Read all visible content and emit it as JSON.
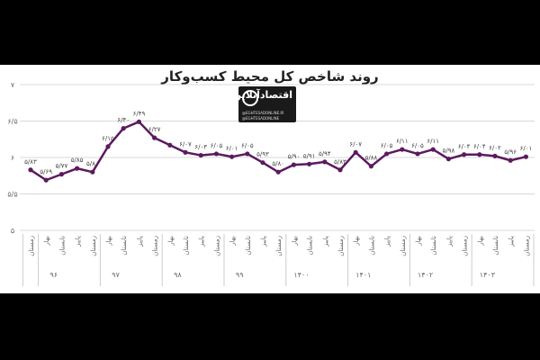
{
  "chart_data": {
    "type": "line",
    "title": "روند شاخص کل محیط کسب‌وکار",
    "ylim": [
      5,
      7
    ],
    "y_ticks": [
      "۵",
      "۵/۵",
      "۶",
      "۶/۵",
      "۷"
    ],
    "y_tick_values": [
      5,
      5.5,
      6,
      6.5,
      7
    ],
    "grid": true,
    "legend": "none",
    "line_color": "#5b1a5e",
    "x_labels": [
      "زمستان",
      "بهار",
      "تابستان",
      "پاییز",
      "زمستان",
      "بهار",
      "تابستان",
      "پاییز",
      "زمستان",
      "بهار",
      "تابستان",
      "پاییز",
      "زمستان",
      "بهار",
      "تابستان",
      "پاییز",
      "زمستان",
      "بهار",
      "تابستان",
      "پاییز",
      "زمستان",
      "بهار",
      "تابستان",
      "پاییز",
      "زمستان",
      "بهار",
      "تابستان",
      "پاییز",
      "زمستان",
      "بهار",
      "تابستان",
      "پاییز",
      "زمستان"
    ],
    "years": [
      "۹۶",
      "۹۷",
      "۹۸",
      "۹۹",
      "۱۴۰۰",
      "۱۴۰۱",
      "۱۴۰۲",
      "۱۴۰۳"
    ],
    "year_spans": [
      [
        0,
        0
      ],
      [
        1,
        4
      ],
      [
        5,
        8
      ],
      [
        9,
        12
      ],
      [
        13,
        16
      ],
      [
        17,
        20
      ],
      [
        21,
        24
      ],
      [
        25,
        28
      ],
      [
        29,
        32
      ]
    ],
    "series": [
      {
        "values": [
          5.83,
          5.69,
          5.77,
          5.85,
          5.8,
          6.15,
          6.4,
          6.49,
          6.27,
          6.17,
          6.07,
          6.03,
          6.05,
          6.01,
          6.05,
          5.93,
          5.8,
          5.9,
          5.91,
          5.94,
          5.83,
          6.07,
          5.88,
          6.05,
          6.11,
          6.05,
          6.11,
          5.98,
          6.04,
          6.04,
          6.02,
          5.96,
          6.01
        ],
        "labels": [
          "۵/۸۳",
          "۵/۶۹",
          "۵/۷۷",
          "۵/۸۵",
          "۵/۸۰",
          "۶/۱۵",
          "۶/۴۰",
          "۶/۴۹",
          "۶/۲۷",
          "",
          "۶/۰۷",
          "۶/۰۳",
          "۶/۰۵",
          "۶/۰۱",
          "۶/۰۵",
          "۵/۹۳",
          "۵/۸۰",
          "۵/۹۰",
          "۵/۹۱",
          "۵/۹۴",
          "۵/۸۳",
          "۶/۰۷",
          "۵/۸۸",
          "۶/۰۵",
          "۶/۱۱",
          "۶/۰۵",
          "۶/۱۱",
          "۵/۹۸",
          "۶/۰۴",
          "۶/۰۴",
          "۶/۰۲",
          "۵/۹۶",
          "۶/۰۱"
        ]
      }
    ]
  },
  "watermark": {
    "logo_text": "اقتصادآنلاین",
    "line1": "@EGHTESADONLINE.IR",
    "line2": "@EGHTESADONLINE"
  }
}
